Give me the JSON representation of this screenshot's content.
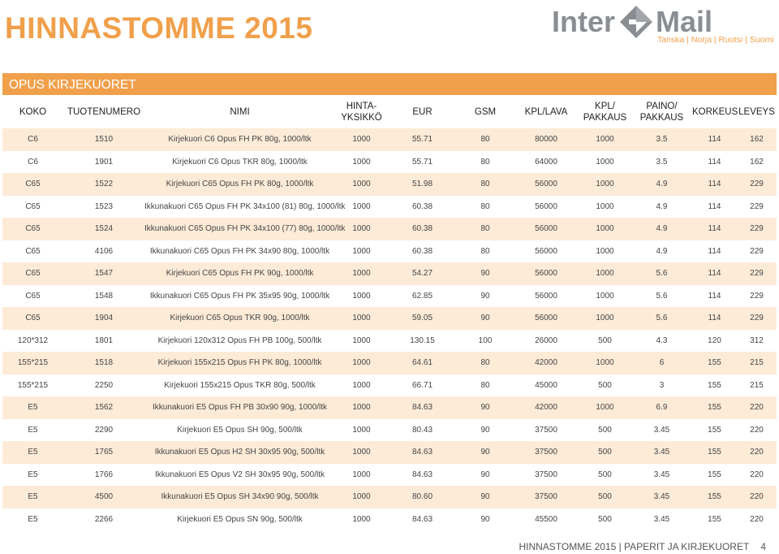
{
  "page_title": "HINNASTOMME 2015",
  "logo": {
    "word1": "Inter",
    "word2": "Mail",
    "countries": "Tanska | Norja | Ruotsi | Suomi"
  },
  "section_title": "OPUS KIRJEKUORET",
  "columns": [
    "KOKO",
    "TUOTENUMERO",
    "NIMI",
    "HINTA-\nYKSIKKÖ",
    "EUR",
    "GSM",
    "KPL/LAVA",
    "KPL/\nPAKKAUS",
    "PAINO/\nPAKKAUS",
    "KORKEUS",
    "LEVEYS"
  ],
  "rows": [
    [
      "C6",
      "1510",
      "Kirjekuori C6 Opus FH PK 80g, 1000/ltk",
      "1000",
      "55.71",
      "80",
      "80000",
      "1000",
      "3.5",
      "114",
      "162"
    ],
    [
      "C6",
      "1901",
      "Kirjekuori C6 Opus TKR 80g, 1000/ltk",
      "1000",
      "55.71",
      "80",
      "64000",
      "1000",
      "3.5",
      "114",
      "162"
    ],
    [
      "C65",
      "1522",
      "Kirjekuori C65 Opus FH PK 80g, 1000/ltk",
      "1000",
      "51.98",
      "80",
      "56000",
      "1000",
      "4.9",
      "114",
      "229"
    ],
    [
      "C65",
      "1523",
      "Ikkunakuori C65 Opus FH PK 34x100 (81) 80g, 1000/ltk",
      "1000",
      "60.38",
      "80",
      "56000",
      "1000",
      "4.9",
      "114",
      "229"
    ],
    [
      "C65",
      "1524",
      "Ikkunakuori C65 Opus FH PK 34x100 (77) 80g, 1000/ltk",
      "1000",
      "60.38",
      "80",
      "56000",
      "1000",
      "4.9",
      "114",
      "229"
    ],
    [
      "C65",
      "4106",
      "Ikkunakuori C65 Opus FH PK 34x90 80g, 1000/ltk",
      "1000",
      "60.38",
      "80",
      "56000",
      "1000",
      "4.9",
      "114",
      "229"
    ],
    [
      "C65",
      "1547",
      "Kirjekuori C65 Opus FH PK 90g, 1000/ltk",
      "1000",
      "54.27",
      "90",
      "56000",
      "1000",
      "5.6",
      "114",
      "229"
    ],
    [
      "C65",
      "1548",
      "Ikkunakuori C65 Opus FH PK 35x95 90g, 1000/ltk",
      "1000",
      "62.85",
      "90",
      "56000",
      "1000",
      "5.6",
      "114",
      "229"
    ],
    [
      "C65",
      "1904",
      "Kirjekuori C65 Opus TKR 90g, 1000/ltk",
      "1000",
      "59.05",
      "90",
      "56000",
      "1000",
      "5.6",
      "114",
      "229"
    ],
    [
      "120*312",
      "1801",
      "Kirjekuori 120x312 Opus FH PB 100g, 500/ltk",
      "1000",
      "130.15",
      "100",
      "26000",
      "500",
      "4.3",
      "120",
      "312"
    ],
    [
      "155*215",
      "1518",
      "Kirjekuori 155x215 Opus FH PK 80g, 1000/ltk",
      "1000",
      "64.61",
      "80",
      "42000",
      "1000",
      "6",
      "155",
      "215"
    ],
    [
      "155*215",
      "2250",
      "Kirjekuori 155x215 Opus TKR 80g, 500/ltk",
      "1000",
      "66.71",
      "80",
      "45000",
      "500",
      "3",
      "155",
      "215"
    ],
    [
      "E5",
      "1562",
      "Ikkunakuori E5 Opus FH PB 30x90 90g, 1000/ltk",
      "1000",
      "84.63",
      "90",
      "42000",
      "1000",
      "6.9",
      "155",
      "220"
    ],
    [
      "E5",
      "2290",
      "Kirjekuori E5 Opus SH 90g, 500/ltk",
      "1000",
      "80.43",
      "90",
      "37500",
      "500",
      "3.45",
      "155",
      "220"
    ],
    [
      "E5",
      "1765",
      "Ikkunakuori E5 Opus H2 SH 30x95 90g, 500/ltk",
      "1000",
      "84.63",
      "90",
      "37500",
      "500",
      "3.45",
      "155",
      "220"
    ],
    [
      "E5",
      "1766",
      "Ikkunakuori E5 Opus V2 SH 30x95 90g, 500/ltk",
      "1000",
      "84.63",
      "90",
      "37500",
      "500",
      "3.45",
      "155",
      "220"
    ],
    [
      "E5",
      "4500",
      "Ikkunakuori E5 Opus SH 34x90 90g, 500/ltk",
      "1000",
      "80.60",
      "90",
      "37500",
      "500",
      "3.45",
      "155",
      "220"
    ],
    [
      "E5",
      "2266",
      "Kirjekuori E5 Opus SN 90g, 500/ltk",
      "1000",
      "84.63",
      "90",
      "45500",
      "500",
      "3.45",
      "155",
      "220"
    ]
  ],
  "footer": {
    "text": "HINNASTOMME 2015 | PAPERIT JA KIRJEKUORET",
    "page": "4"
  },
  "colors": {
    "accent": "#f0a04b",
    "row_tint": "#fdebd8",
    "logo_gray": "#8a8e92"
  }
}
